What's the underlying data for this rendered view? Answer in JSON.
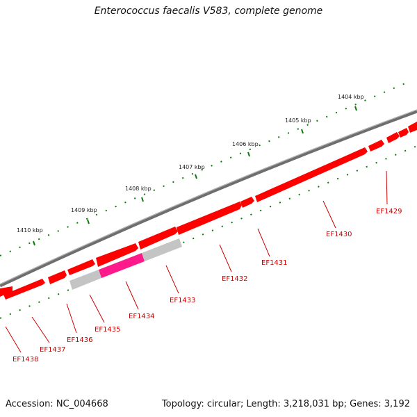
{
  "header": {
    "title": "Enterococcus faecalis V583, complete genome"
  },
  "footer": {
    "accession": "Accession: NC_004668",
    "summary": "Topology: circular; Length: 3,218,031 bp; Genes: 3,192"
  },
  "colors": {
    "backbone": "#7a7a7a",
    "gene": "#ff0000",
    "gene_dark": "#b30000",
    "gene_highlight": "#ff1a8c",
    "gene_gray": "#c0c0c0",
    "tick": "#0d7a0d",
    "label": "#cc0000"
  },
  "ruler": {
    "labels": [
      "1404 kbp",
      "1405 kbp",
      "1406 kbp",
      "1407 kbp",
      "1408 kbp",
      "1409 kbp",
      "1410 kbp"
    ]
  },
  "genes": {
    "labels": [
      "EF1429",
      "EF1430",
      "EF1431",
      "EF1432",
      "EF1433",
      "EF1434",
      "EF1435",
      "EF1436",
      "EF1437",
      "EF1438"
    ]
  }
}
